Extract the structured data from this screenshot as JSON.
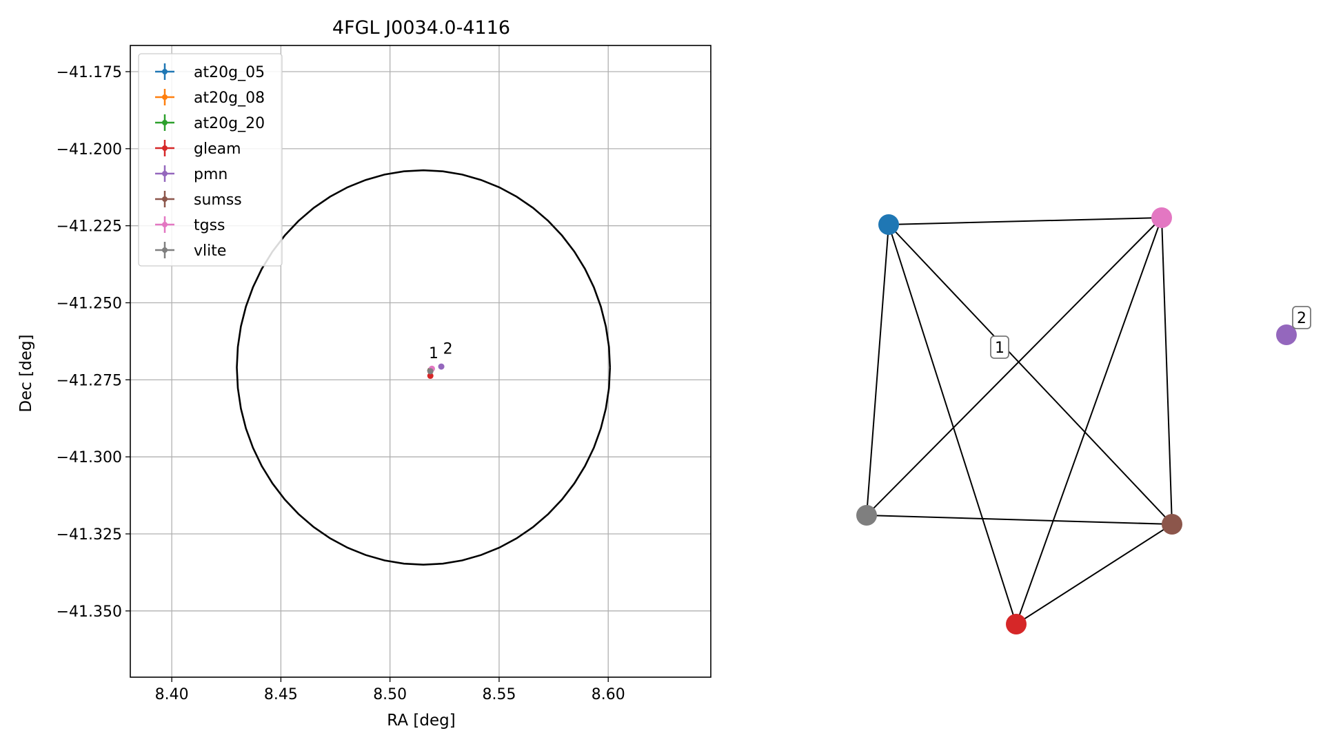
{
  "chart_data": [
    {
      "type": "scatter",
      "title": "4FGL J0034.0-4116",
      "xlabel": "RA [deg]",
      "ylabel": "Dec [deg]",
      "xlim": [
        8.381,
        8.647
      ],
      "ylim": [
        -41.3715,
        -41.1665
      ],
      "xticks": [
        8.4,
        8.45,
        8.5,
        8.55,
        8.6
      ],
      "xtick_labels": [
        "8.40",
        "8.45",
        "8.50",
        "8.55",
        "8.60"
      ],
      "yticks": [
        -41.175,
        -41.2,
        -41.225,
        -41.25,
        -41.275,
        -41.3,
        -41.325,
        -41.35
      ],
      "ytick_labels": [
        "−41.175",
        "−41.200",
        "−41.225",
        "−41.250",
        "−41.275",
        "−41.300",
        "−41.325",
        "−41.350"
      ],
      "grid": true,
      "legend_location": "top-left",
      "series": [
        {
          "name": "at20g_05",
          "color": "#1f77b4",
          "points": [
            {
              "x": 8.5185,
              "y": -41.272
            }
          ]
        },
        {
          "name": "at20g_08",
          "color": "#ff7f0e",
          "points": [
            {
              "x": 8.5185,
              "y": -41.272
            }
          ]
        },
        {
          "name": "at20g_20",
          "color": "#2ca02c",
          "points": [
            {
              "x": 8.5185,
              "y": -41.272
            }
          ]
        },
        {
          "name": "gleam",
          "color": "#d62728",
          "points": [
            {
              "x": 8.5185,
              "y": -41.2737
            }
          ]
        },
        {
          "name": "pmn",
          "color": "#9467bd",
          "points": [
            {
              "x": 8.5235,
              "y": -41.2707
            }
          ]
        },
        {
          "name": "sumss",
          "color": "#8c564b",
          "points": [
            {
              "x": 8.5185,
              "y": -41.272
            }
          ]
        },
        {
          "name": "tgss",
          "color": "#e377c2",
          "points": [
            {
              "x": 8.5192,
              "y": -41.2714
            }
          ]
        },
        {
          "name": "vlite",
          "color": "#7f7f7f",
          "points": [
            {
              "x": 8.5185,
              "y": -41.2722
            }
          ]
        }
      ],
      "ellipse": {
        "center_x": 8.5153,
        "center_y": -41.271,
        "ra_semi_axis": 0.0855,
        "dec_semi_axis": 0.064,
        "color": "#000000"
      },
      "annotations": [
        {
          "text": "1",
          "x": 8.52,
          "y": -41.268
        },
        {
          "text": "2",
          "x": 8.5265,
          "y": -41.2665
        }
      ]
    },
    {
      "type": "network",
      "nodes": [
        {
          "id": "at20g",
          "color": "#1f77b4"
        },
        {
          "id": "tgss",
          "color": "#e377c2"
        },
        {
          "id": "vlite",
          "color": "#7f7f7f"
        },
        {
          "id": "sumss",
          "color": "#8c564b"
        },
        {
          "id": "gleam",
          "color": "#d62728"
        },
        {
          "id": "pmn",
          "color": "#9467bd"
        }
      ],
      "edges": [
        [
          "at20g",
          "tgss"
        ],
        [
          "at20g",
          "vlite"
        ],
        [
          "at20g",
          "sumss"
        ],
        [
          "at20g",
          "gleam"
        ],
        [
          "tgss",
          "vlite"
        ],
        [
          "tgss",
          "sumss"
        ],
        [
          "tgss",
          "gleam"
        ],
        [
          "vlite",
          "sumss"
        ],
        [
          "sumss",
          "gleam"
        ]
      ],
      "labels": [
        {
          "text": "1",
          "group": 1
        },
        {
          "text": "2",
          "group": 2
        }
      ]
    }
  ]
}
